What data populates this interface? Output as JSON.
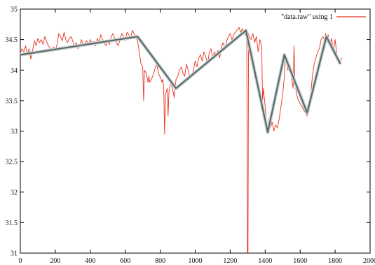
{
  "chart_data": {
    "type": "line",
    "xlim": [
      0,
      2000
    ],
    "ylim": [
      31,
      35
    ],
    "x_ticks": [
      0,
      200,
      400,
      600,
      800,
      1000,
      1200,
      1400,
      1600,
      1800,
      2000
    ],
    "y_ticks": [
      31,
      31.5,
      32,
      32.5,
      33,
      33.5,
      34,
      34.5,
      35
    ],
    "x_tick_labels": [
      "0",
      "200",
      "400",
      "600",
      "800",
      "1000",
      "1200",
      "1400",
      "1600",
      "1800",
      "2000"
    ],
    "y_tick_labels": [
      "31",
      "31.5",
      "32",
      "32.5",
      "33",
      "33.5",
      "34",
      "34.5",
      "35"
    ],
    "grid": false,
    "legend_position": "top-right",
    "series": [
      {
        "name": "\"data.raw\" using 1",
        "color": "#e8321e",
        "style": "noisy-line",
        "points": [
          [
            0,
            34.28
          ],
          [
            10,
            34.35
          ],
          [
            20,
            34.3
          ],
          [
            30,
            34.4
          ],
          [
            40,
            34.25
          ],
          [
            50,
            34.35
          ],
          [
            60,
            34.18
          ],
          [
            70,
            34.32
          ],
          [
            80,
            34.48
          ],
          [
            90,
            34.4
          ],
          [
            100,
            34.52
          ],
          [
            110,
            34.45
          ],
          [
            120,
            34.5
          ],
          [
            130,
            34.42
          ],
          [
            140,
            34.55
          ],
          [
            150,
            34.47
          ],
          [
            160,
            34.4
          ],
          [
            170,
            34.36
          ],
          [
            180,
            34.3
          ],
          [
            190,
            34.38
          ],
          [
            200,
            34.33
          ],
          [
            210,
            34.42
          ],
          [
            220,
            34.6
          ],
          [
            230,
            34.55
          ],
          [
            240,
            34.48
          ],
          [
            250,
            34.62
          ],
          [
            260,
            34.5
          ],
          [
            270,
            34.45
          ],
          [
            280,
            34.52
          ],
          [
            290,
            34.55
          ],
          [
            300,
            34.48
          ],
          [
            310,
            34.38
          ],
          [
            320,
            34.45
          ],
          [
            330,
            34.35
          ],
          [
            340,
            34.42
          ],
          [
            350,
            34.5
          ],
          [
            360,
            34.4
          ],
          [
            370,
            34.45
          ],
          [
            380,
            34.48
          ],
          [
            390,
            34.42
          ],
          [
            400,
            34.5
          ],
          [
            410,
            34.43
          ],
          [
            420,
            34.47
          ],
          [
            430,
            34.4
          ],
          [
            440,
            34.52
          ],
          [
            450,
            34.46
          ],
          [
            460,
            34.58
          ],
          [
            470,
            34.5
          ],
          [
            480,
            34.44
          ],
          [
            490,
            34.4
          ],
          [
            500,
            34.48
          ],
          [
            510,
            34.42
          ],
          [
            520,
            34.55
          ],
          [
            530,
            34.6
          ],
          [
            540,
            34.52
          ],
          [
            550,
            34.45
          ],
          [
            560,
            34.4
          ],
          [
            570,
            34.5
          ],
          [
            580,
            34.6
          ],
          [
            590,
            34.55
          ],
          [
            600,
            34.48
          ],
          [
            610,
            34.62
          ],
          [
            620,
            34.58
          ],
          [
            630,
            34.52
          ],
          [
            640,
            34.65
          ],
          [
            650,
            34.6
          ],
          [
            660,
            34.55
          ],
          [
            670,
            34.48
          ],
          [
            680,
            34.3
          ],
          [
            690,
            34.1
          ],
          [
            700,
            34.05
          ],
          [
            705,
            33.5
          ],
          [
            710,
            34.0
          ],
          [
            720,
            33.95
          ],
          [
            730,
            33.8
          ],
          [
            735,
            33.9
          ],
          [
            740,
            33.8
          ],
          [
            750,
            33.85
          ],
          [
            760,
            33.92
          ],
          [
            770,
            34.02
          ],
          [
            780,
            34.1
          ],
          [
            790,
            33.95
          ],
          [
            800,
            33.88
          ],
          [
            810,
            33.8
          ],
          [
            815,
            33.85
          ],
          [
            820,
            33.7
          ],
          [
            825,
            32.95
          ],
          [
            830,
            33.6
          ],
          [
            840,
            33.7
          ],
          [
            845,
            33.25
          ],
          [
            850,
            33.65
          ],
          [
            860,
            33.8
          ],
          [
            870,
            33.7
          ],
          [
            880,
            33.55
          ],
          [
            890,
            33.85
          ],
          [
            900,
            33.9
          ],
          [
            910,
            34.0
          ],
          [
            920,
            34.05
          ],
          [
            930,
            33.95
          ],
          [
            940,
            33.9
          ],
          [
            950,
            34.1
          ],
          [
            960,
            34.0
          ],
          [
            970,
            33.88
          ],
          [
            980,
            33.9
          ],
          [
            990,
            34.0
          ],
          [
            1000,
            34.15
          ],
          [
            1010,
            34.05
          ],
          [
            1020,
            34.2
          ],
          [
            1030,
            34.25
          ],
          [
            1040,
            34.15
          ],
          [
            1050,
            34.3
          ],
          [
            1060,
            34.22
          ],
          [
            1070,
            34.1
          ],
          [
            1080,
            34.28
          ],
          [
            1090,
            34.35
          ],
          [
            1100,
            34.2
          ],
          [
            1110,
            34.3
          ],
          [
            1120,
            34.25
          ],
          [
            1130,
            34.32
          ],
          [
            1140,
            34.2
          ],
          [
            1150,
            34.38
          ],
          [
            1160,
            34.45
          ],
          [
            1170,
            34.35
          ],
          [
            1180,
            34.48
          ],
          [
            1190,
            34.55
          ],
          [
            1200,
            34.6
          ],
          [
            1210,
            34.5
          ],
          [
            1220,
            34.58
          ],
          [
            1230,
            34.62
          ],
          [
            1240,
            34.66
          ],
          [
            1250,
            34.7
          ],
          [
            1260,
            34.62
          ],
          [
            1270,
            34.68
          ],
          [
            1280,
            34.6
          ],
          [
            1290,
            34.55
          ],
          [
            1295,
            34.5
          ],
          [
            1298,
            31.0
          ],
          [
            1302,
            31.0
          ],
          [
            1305,
            34.6
          ],
          [
            1310,
            34.55
          ],
          [
            1320,
            34.5
          ],
          [
            1330,
            34.6
          ],
          [
            1340,
            34.45
          ],
          [
            1350,
            34.55
          ],
          [
            1360,
            34.3
          ],
          [
            1370,
            34.5
          ],
          [
            1380,
            34.4
          ],
          [
            1385,
            33.5
          ],
          [
            1390,
            33.7
          ],
          [
            1400,
            33.4
          ],
          [
            1405,
            33.25
          ],
          [
            1410,
            33.1
          ],
          [
            1415,
            33.0
          ],
          [
            1420,
            33.2
          ],
          [
            1430,
            33.05
          ],
          [
            1440,
            33.15
          ],
          [
            1450,
            33.0
          ],
          [
            1460,
            33.1
          ],
          [
            1470,
            33.05
          ],
          [
            1480,
            33.2
          ],
          [
            1490,
            33.4
          ],
          [
            1500,
            33.6
          ],
          [
            1510,
            33.9
          ],
          [
            1515,
            34.2
          ],
          [
            1520,
            34.15
          ],
          [
            1530,
            34.0
          ],
          [
            1540,
            34.05
          ],
          [
            1550,
            33.9
          ],
          [
            1560,
            33.7
          ],
          [
            1565,
            34.4
          ],
          [
            1570,
            33.8
          ],
          [
            1580,
            33.6
          ],
          [
            1590,
            33.5
          ],
          [
            1600,
            33.45
          ],
          [
            1610,
            33.4
          ],
          [
            1620,
            33.35
          ],
          [
            1630,
            33.3
          ],
          [
            1640,
            33.25
          ],
          [
            1650,
            33.4
          ],
          [
            1660,
            33.6
          ],
          [
            1670,
            33.9
          ],
          [
            1680,
            34.1
          ],
          [
            1690,
            34.2
          ],
          [
            1700,
            34.3
          ],
          [
            1710,
            34.35
          ],
          [
            1720,
            34.5
          ],
          [
            1730,
            34.55
          ],
          [
            1740,
            34.5
          ],
          [
            1745,
            34.6
          ],
          [
            1750,
            34.45
          ],
          [
            1760,
            34.58
          ],
          [
            1770,
            34.4
          ],
          [
            1780,
            34.52
          ],
          [
            1790,
            34.3
          ],
          [
            1800,
            34.5
          ],
          [
            1810,
            34.25
          ],
          [
            1820,
            34.2
          ],
          [
            1830,
            34.15
          ],
          [
            1840,
            34.2
          ]
        ]
      },
      {
        "color": "#5a6b6b",
        "style": "thick-line",
        "points": [
          [
            0,
            34.25
          ],
          [
            670,
            34.55
          ],
          [
            890,
            33.7
          ],
          [
            1290,
            34.65
          ],
          [
            1415,
            32.98
          ],
          [
            1510,
            34.25
          ],
          [
            1640,
            33.3
          ],
          [
            1750,
            34.55
          ],
          [
            1830,
            34.1
          ]
        ]
      }
    ]
  }
}
